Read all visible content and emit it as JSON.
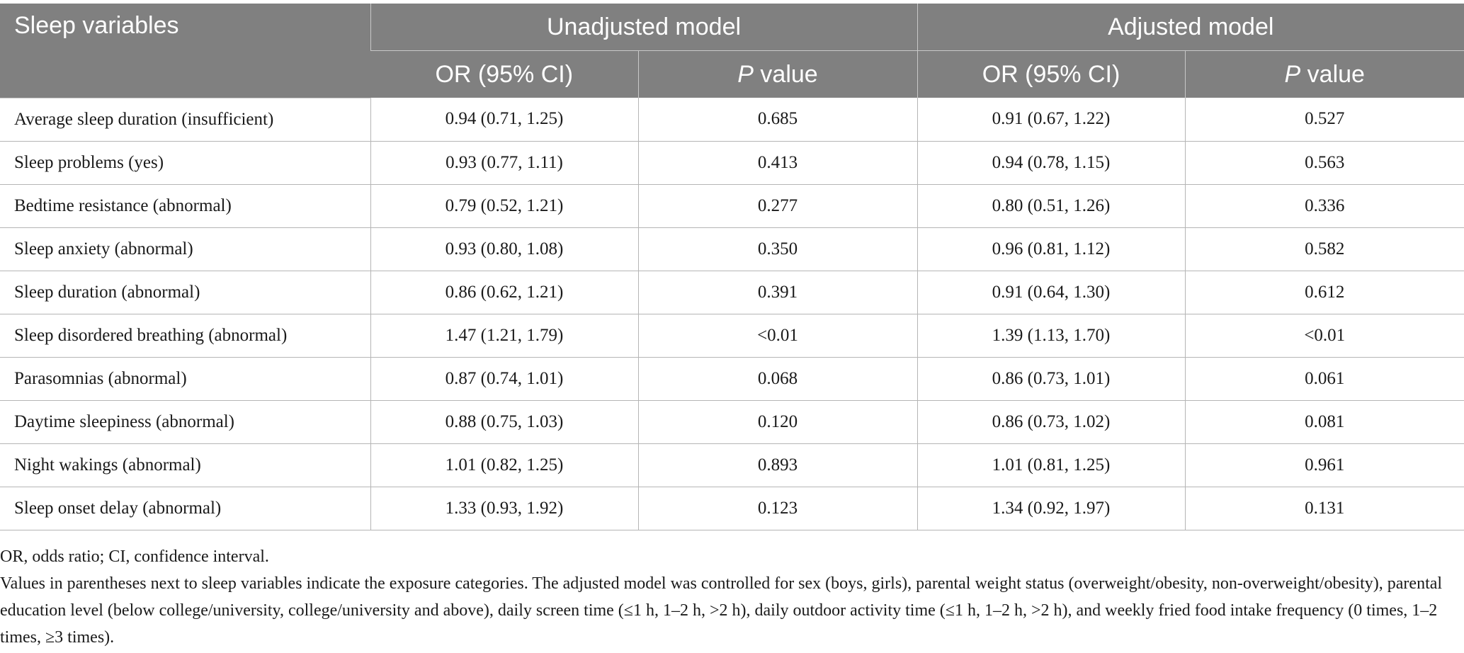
{
  "header": {
    "col1": "Sleep variables",
    "group1": "Unadjusted model",
    "group2": "Adjusted model",
    "or_label": "OR (95% CI)",
    "p_letter": "P",
    "p_rest": " value"
  },
  "rows": [
    {
      "variable": "Average sleep duration (insufficient)",
      "u_or": "0.94 (0.71, 1.25)",
      "u_p": "0.685",
      "a_or": "0.91 (0.67, 1.22)",
      "a_p": "0.527"
    },
    {
      "variable": "Sleep problems (yes)",
      "u_or": "0.93 (0.77, 1.11)",
      "u_p": "0.413",
      "a_or": "0.94 (0.78, 1.15)",
      "a_p": "0.563"
    },
    {
      "variable": "Bedtime resistance (abnormal)",
      "u_or": "0.79 (0.52, 1.21)",
      "u_p": "0.277",
      "a_or": "0.80 (0.51, 1.26)",
      "a_p": "0.336"
    },
    {
      "variable": "Sleep anxiety (abnormal)",
      "u_or": "0.93 (0.80, 1.08)",
      "u_p": "0.350",
      "a_or": "0.96 (0.81, 1.12)",
      "a_p": "0.582"
    },
    {
      "variable": "Sleep duration (abnormal)",
      "u_or": "0.86 (0.62, 1.21)",
      "u_p": "0.391",
      "a_or": "0.91 (0.64, 1.30)",
      "a_p": "0.612"
    },
    {
      "variable": "Sleep disordered breathing (abnormal)",
      "u_or": "1.47 (1.21, 1.79)",
      "u_p": "<0.01",
      "a_or": "1.39 (1.13, 1.70)",
      "a_p": "<0.01"
    },
    {
      "variable": "Parasomnias (abnormal)",
      "u_or": "0.87 (0.74, 1.01)",
      "u_p": "0.068",
      "a_or": "0.86 (0.73, 1.01)",
      "a_p": "0.061"
    },
    {
      "variable": "Daytime sleepiness (abnormal)",
      "u_or": "0.88 (0.75, 1.03)",
      "u_p": "0.120",
      "a_or": "0.86 (0.73, 1.02)",
      "a_p": "0.081"
    },
    {
      "variable": "Night wakings (abnormal)",
      "u_or": "1.01 (0.82, 1.25)",
      "u_p": "0.893",
      "a_or": "1.01 (0.81, 1.25)",
      "a_p": "0.961"
    },
    {
      "variable": "Sleep onset delay (abnormal)",
      "u_or": "1.33 (0.93, 1.92)",
      "u_p": "0.123",
      "a_or": "1.34 (0.92, 1.97)",
      "a_p": "0.131"
    }
  ],
  "notes": {
    "abbrev": "OR, odds ratio; CI, confidence interval.",
    "description": "Values in parentheses next to sleep variables indicate the exposure categories. The adjusted model was controlled for sex (boys, girls), parental weight status (overweight/obesity, non-overweight/obesity), parental education level (below college/university, college/university and above), daily screen time (≤1 h, 1–2 h, >2 h), daily outdoor activity time (≤1 h, 1–2 h, >2 h), and weekly fried food intake frequency (0 times, 1–2 times, ≥3 times)."
  }
}
